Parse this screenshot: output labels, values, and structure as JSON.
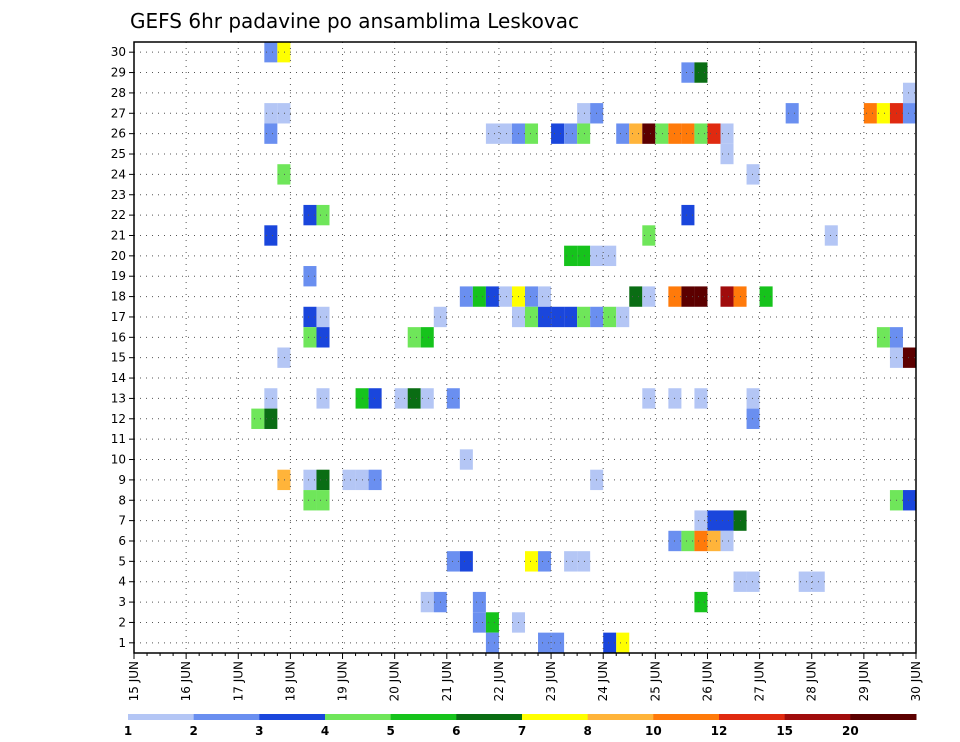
{
  "chart_data": {
    "type": "heatmap",
    "title": "GEFS 6hr padavine po ansamblima Leskovac",
    "xlabel": "",
    "ylabel": "",
    "x_tick_labels": [
      "15 JUN",
      "16 JUN",
      "17 JUN",
      "18 JUN",
      "19 JUN",
      "20 JUN",
      "21 JUN",
      "22 JUN",
      "23 JUN",
      "24 JUN",
      "25 JUN",
      "26 JUN",
      "27 JUN",
      "28 JUN",
      "29 JUN",
      "30 JUN"
    ],
    "y_tick_labels": [
      "1",
      "2",
      "3",
      "4",
      "5",
      "6",
      "7",
      "8",
      "9",
      "10",
      "11",
      "12",
      "13",
      "14",
      "15",
      "16",
      "17",
      "18",
      "19",
      "20",
      "21",
      "22",
      "23",
      "24",
      "25",
      "26",
      "27",
      "28",
      "29",
      "30"
    ],
    "x_range": [
      15,
      30
    ],
    "y_range": [
      0.5,
      30.5
    ],
    "cell_width_days": 0.25,
    "grid": true,
    "legend_position": "bottom",
    "color_levels": [
      1,
      2,
      3,
      4,
      5,
      6,
      7,
      8,
      10,
      12,
      15,
      20
    ],
    "legend_labels": [
      "1",
      "2",
      "3",
      "4",
      "5",
      "6",
      "7",
      "8",
      "10",
      "12",
      "15",
      "20"
    ],
    "legend_colors": [
      "#b4c6f5",
      "#6a8ff0",
      "#1a46dc",
      "#6fe65a",
      "#16c31c",
      "#0a6d14",
      "#ffff00",
      "#ffb43a",
      "#ff7a0a",
      "#e02a10",
      "#a00c0c",
      "#5c0000"
    ],
    "cells": [
      {
        "x": 17.5,
        "y": 30,
        "level": 2
      },
      {
        "x": 17.75,
        "y": 30,
        "level": 7
      },
      {
        "x": 25.5,
        "y": 29,
        "level": 2
      },
      {
        "x": 25.75,
        "y": 29,
        "level": 6
      },
      {
        "x": 29.75,
        "y": 28,
        "level": 1
      },
      {
        "x": 17.5,
        "y": 27,
        "level": 1
      },
      {
        "x": 17.75,
        "y": 27,
        "level": 1
      },
      {
        "x": 23.5,
        "y": 27,
        "level": 1
      },
      {
        "x": 23.75,
        "y": 27,
        "level": 2
      },
      {
        "x": 27.5,
        "y": 27,
        "level": 2
      },
      {
        "x": 29,
        "y": 27,
        "level": 9
      },
      {
        "x": 29.25,
        "y": 27,
        "level": 7
      },
      {
        "x": 29.5,
        "y": 27,
        "level": 10
      },
      {
        "x": 29.75,
        "y": 27,
        "level": 2
      },
      {
        "x": 17.5,
        "y": 26,
        "level": 2
      },
      {
        "x": 21.75,
        "y": 26,
        "level": 1
      },
      {
        "x": 22,
        "y": 26,
        "level": 1
      },
      {
        "x": 22.25,
        "y": 26,
        "level": 2
      },
      {
        "x": 22.5,
        "y": 26,
        "level": 4
      },
      {
        "x": 23,
        "y": 26,
        "level": 3
      },
      {
        "x": 23.25,
        "y": 26,
        "level": 2
      },
      {
        "x": 23.5,
        "y": 26,
        "level": 4
      },
      {
        "x": 24.25,
        "y": 26,
        "level": 2
      },
      {
        "x": 24.5,
        "y": 26,
        "level": 8
      },
      {
        "x": 24.75,
        "y": 26,
        "level": 12
      },
      {
        "x": 25,
        "y": 26,
        "level": 4
      },
      {
        "x": 25.25,
        "y": 26,
        "level": 9
      },
      {
        "x": 25.5,
        "y": 26,
        "level": 9
      },
      {
        "x": 25.75,
        "y": 26,
        "level": 4
      },
      {
        "x": 26,
        "y": 26,
        "level": 10
      },
      {
        "x": 26.25,
        "y": 26,
        "level": 1
      },
      {
        "x": 26.25,
        "y": 25,
        "level": 1
      },
      {
        "x": 17.75,
        "y": 24,
        "level": 4
      },
      {
        "x": 26.75,
        "y": 24,
        "level": 1
      },
      {
        "x": 18.25,
        "y": 22,
        "level": 3
      },
      {
        "x": 18.5,
        "y": 22,
        "level": 4
      },
      {
        "x": 25.5,
        "y": 22,
        "level": 3
      },
      {
        "x": 17.5,
        "y": 21,
        "level": 3
      },
      {
        "x": 24.75,
        "y": 21,
        "level": 4
      },
      {
        "x": 28.25,
        "y": 21,
        "level": 1
      },
      {
        "x": 23.25,
        "y": 20,
        "level": 5
      },
      {
        "x": 23.5,
        "y": 20,
        "level": 5
      },
      {
        "x": 23.75,
        "y": 20,
        "level": 1
      },
      {
        "x": 24,
        "y": 20,
        "level": 1
      },
      {
        "x": 18.25,
        "y": 19,
        "level": 2
      },
      {
        "x": 21.25,
        "y": 18,
        "level": 2
      },
      {
        "x": 21.5,
        "y": 18,
        "level": 5
      },
      {
        "x": 21.75,
        "y": 18,
        "level": 3
      },
      {
        "x": 22,
        "y": 18,
        "level": 1
      },
      {
        "x": 22.25,
        "y": 18,
        "level": 7
      },
      {
        "x": 22.5,
        "y": 18,
        "level": 2
      },
      {
        "x": 22.75,
        "y": 18,
        "level": 1
      },
      {
        "x": 24.5,
        "y": 18,
        "level": 6
      },
      {
        "x": 24.75,
        "y": 18,
        "level": 1
      },
      {
        "x": 25.25,
        "y": 18,
        "level": 9
      },
      {
        "x": 25.5,
        "y": 18,
        "level": 12
      },
      {
        "x": 25.75,
        "y": 18,
        "level": 12
      },
      {
        "x": 26.25,
        "y": 18,
        "level": 11
      },
      {
        "x": 26.5,
        "y": 18,
        "level": 9
      },
      {
        "x": 27,
        "y": 18,
        "level": 5
      },
      {
        "x": 18.25,
        "y": 17,
        "level": 3
      },
      {
        "x": 18.5,
        "y": 17,
        "level": 1
      },
      {
        "x": 20.75,
        "y": 17,
        "level": 1
      },
      {
        "x": 22.25,
        "y": 17,
        "level": 1
      },
      {
        "x": 22.5,
        "y": 17,
        "level": 4
      },
      {
        "x": 22.75,
        "y": 17,
        "level": 3
      },
      {
        "x": 23,
        "y": 17,
        "level": 3
      },
      {
        "x": 23.25,
        "y": 17,
        "level": 3
      },
      {
        "x": 23.5,
        "y": 17,
        "level": 4
      },
      {
        "x": 23.75,
        "y": 17,
        "level": 2
      },
      {
        "x": 24,
        "y": 17,
        "level": 4
      },
      {
        "x": 24.25,
        "y": 17,
        "level": 1
      },
      {
        "x": 18.25,
        "y": 16,
        "level": 4
      },
      {
        "x": 18.5,
        "y": 16,
        "level": 3
      },
      {
        "x": 20.25,
        "y": 16,
        "level": 4
      },
      {
        "x": 20.5,
        "y": 16,
        "level": 5
      },
      {
        "x": 29.25,
        "y": 16,
        "level": 4
      },
      {
        "x": 29.5,
        "y": 16,
        "level": 2
      },
      {
        "x": 17.75,
        "y": 15,
        "level": 1
      },
      {
        "x": 29.5,
        "y": 15,
        "level": 1
      },
      {
        "x": 29.75,
        "y": 15,
        "level": 12
      },
      {
        "x": 17.5,
        "y": 13,
        "level": 1
      },
      {
        "x": 18.5,
        "y": 13,
        "level": 1
      },
      {
        "x": 19.25,
        "y": 13,
        "level": 5
      },
      {
        "x": 19.5,
        "y": 13,
        "level": 3
      },
      {
        "x": 20,
        "y": 13,
        "level": 1
      },
      {
        "x": 20.25,
        "y": 13,
        "level": 6
      },
      {
        "x": 20.5,
        "y": 13,
        "level": 1
      },
      {
        "x": 21,
        "y": 13,
        "level": 2
      },
      {
        "x": 24.75,
        "y": 13,
        "level": 1
      },
      {
        "x": 25.25,
        "y": 13,
        "level": 1
      },
      {
        "x": 25.75,
        "y": 13,
        "level": 1
      },
      {
        "x": 26.75,
        "y": 13,
        "level": 1
      },
      {
        "x": 17.25,
        "y": 12,
        "level": 4
      },
      {
        "x": 17.5,
        "y": 12,
        "level": 6
      },
      {
        "x": 26.75,
        "y": 12,
        "level": 2
      },
      {
        "x": 21.25,
        "y": 10,
        "level": 1
      },
      {
        "x": 17.75,
        "y": 9,
        "level": 8
      },
      {
        "x": 18.25,
        "y": 9,
        "level": 1
      },
      {
        "x": 18.5,
        "y": 9,
        "level": 6
      },
      {
        "x": 19,
        "y": 9,
        "level": 1
      },
      {
        "x": 19.25,
        "y": 9,
        "level": 1
      },
      {
        "x": 19.5,
        "y": 9,
        "level": 2
      },
      {
        "x": 23.75,
        "y": 9,
        "level": 1
      },
      {
        "x": 18.25,
        "y": 8,
        "level": 4
      },
      {
        "x": 18.5,
        "y": 8,
        "level": 4
      },
      {
        "x": 29.5,
        "y": 8,
        "level": 4
      },
      {
        "x": 29.75,
        "y": 8,
        "level": 3
      },
      {
        "x": 25.75,
        "y": 7,
        "level": 1
      },
      {
        "x": 26,
        "y": 7,
        "level": 3
      },
      {
        "x": 26.25,
        "y": 7,
        "level": 3
      },
      {
        "x": 26.5,
        "y": 7,
        "level": 6
      },
      {
        "x": 25.25,
        "y": 6,
        "level": 2
      },
      {
        "x": 25.5,
        "y": 6,
        "level": 4
      },
      {
        "x": 25.75,
        "y": 6,
        "level": 9
      },
      {
        "x": 26,
        "y": 6,
        "level": 8
      },
      {
        "x": 26.25,
        "y": 6,
        "level": 1
      },
      {
        "x": 21,
        "y": 5,
        "level": 2
      },
      {
        "x": 21.25,
        "y": 5,
        "level": 3
      },
      {
        "x": 22.5,
        "y": 5,
        "level": 7
      },
      {
        "x": 22.75,
        "y": 5,
        "level": 2
      },
      {
        "x": 23.25,
        "y": 5,
        "level": 1
      },
      {
        "x": 23.5,
        "y": 5,
        "level": 1
      },
      {
        "x": 26.5,
        "y": 4,
        "level": 1
      },
      {
        "x": 26.75,
        "y": 4,
        "level": 1
      },
      {
        "x": 27.75,
        "y": 4,
        "level": 1
      },
      {
        "x": 28,
        "y": 4,
        "level": 1
      },
      {
        "x": 20.5,
        "y": 3,
        "level": 1
      },
      {
        "x": 20.75,
        "y": 3,
        "level": 2
      },
      {
        "x": 21.5,
        "y": 3,
        "level": 2
      },
      {
        "x": 25.75,
        "y": 3,
        "level": 5
      },
      {
        "x": 21.5,
        "y": 2,
        "level": 2
      },
      {
        "x": 21.75,
        "y": 2,
        "level": 5
      },
      {
        "x": 22.25,
        "y": 2,
        "level": 1
      },
      {
        "x": 21.75,
        "y": 1,
        "level": 2
      },
      {
        "x": 22.75,
        "y": 1,
        "level": 2
      },
      {
        "x": 23,
        "y": 1,
        "level": 2
      },
      {
        "x": 24,
        "y": 1,
        "level": 3
      },
      {
        "x": 24.25,
        "y": 1,
        "level": 7
      }
    ]
  }
}
